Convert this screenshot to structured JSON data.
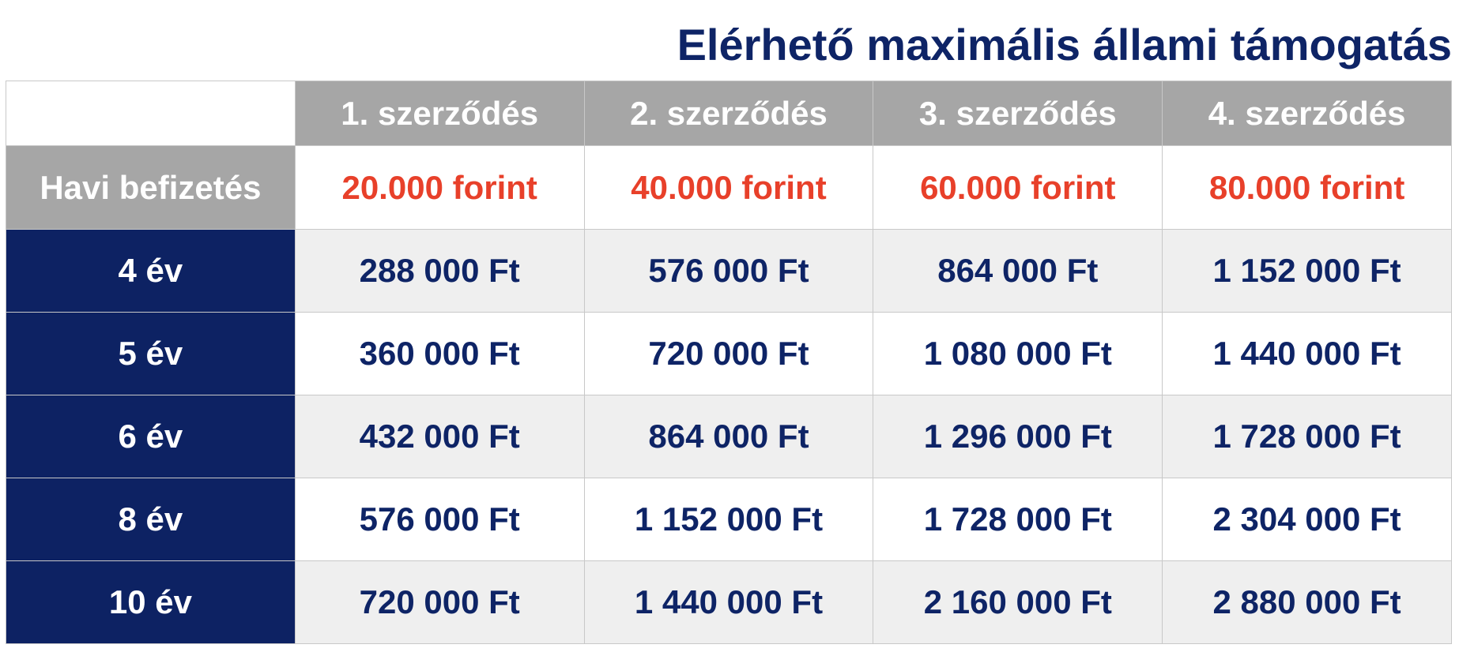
{
  "title": "Elérhető maximális állami támogatás",
  "table": {
    "columns": [
      "1. szerződés",
      "2. szerződés",
      "3. szerződés",
      "4. szerződés"
    ],
    "payment": {
      "label": "Havi befizetés",
      "values": [
        "20.000 forint",
        "40.000 forint",
        "60.000 forint",
        "80.000 forint"
      ]
    },
    "rows": [
      {
        "label": "4 év",
        "values": [
          "288 000 Ft",
          "576 000 Ft",
          "864 000 Ft",
          "1 152 000 Ft"
        ]
      },
      {
        "label": "5 év",
        "values": [
          "360 000 Ft",
          "720 000 Ft",
          "1 080 000 Ft",
          "1 440 000 Ft"
        ]
      },
      {
        "label": "6 év",
        "values": [
          "432 000 Ft",
          "864 000 Ft",
          "1 296 000 Ft",
          "1 728 000 Ft"
        ]
      },
      {
        "label": "8 év",
        "values": [
          "576 000 Ft",
          "1 152 000 Ft",
          "1 728 000 Ft",
          "2 304 000 Ft"
        ]
      },
      {
        "label": "10 év",
        "values": [
          "720 000 Ft",
          "1 440 000 Ft",
          "2 160 000 Ft",
          "2 880 000 Ft"
        ]
      }
    ]
  }
}
